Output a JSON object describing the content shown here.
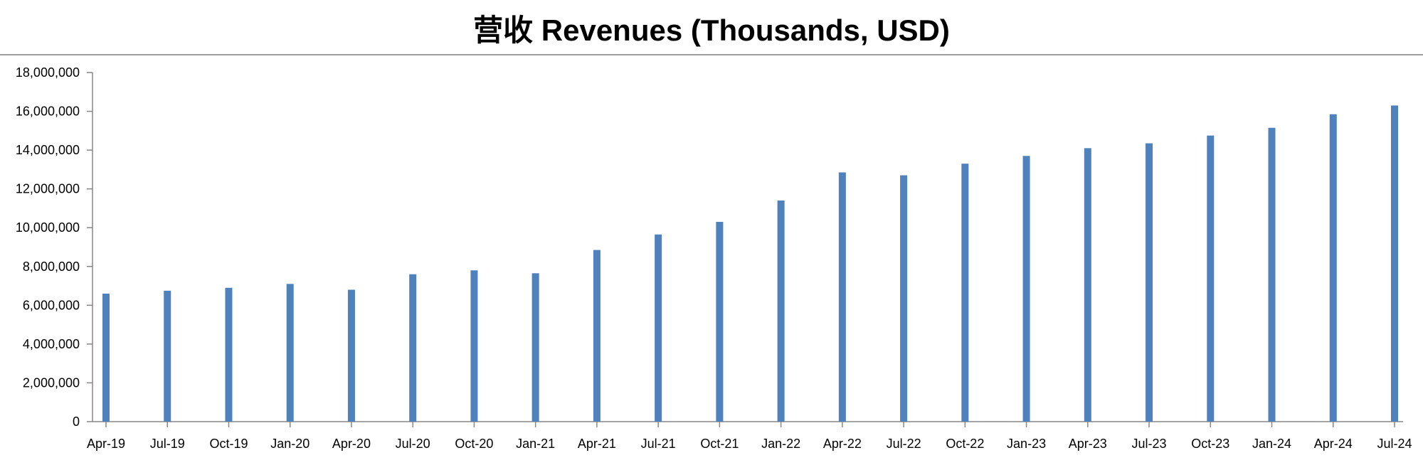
{
  "chart_data": {
    "type": "bar",
    "title": "营收 Revenues (Thousands, USD)",
    "xlabel": "",
    "ylabel": "",
    "categories": [
      "Apr-19",
      "Jul-19",
      "Oct-19",
      "Jan-20",
      "Apr-20",
      "Jul-20",
      "Oct-20",
      "Jan-21",
      "Apr-21",
      "Jul-21",
      "Oct-21",
      "Jan-22",
      "Apr-22",
      "Jul-22",
      "Oct-22",
      "Jan-23",
      "Apr-23",
      "Jul-23",
      "Oct-23",
      "Jan-24",
      "Apr-24",
      "Jul-24"
    ],
    "values": [
      6600000,
      6750000,
      6900000,
      7100000,
      6800000,
      7600000,
      7800000,
      7650000,
      8850000,
      9650000,
      10300000,
      11400000,
      12850000,
      12700000,
      13300000,
      13700000,
      14100000,
      14350000,
      14750000,
      15150000,
      15850000,
      16300000
    ],
    "ylim": [
      0,
      18000000
    ],
    "yticks": [
      0,
      2000000,
      4000000,
      6000000,
      8000000,
      10000000,
      12000000,
      14000000,
      16000000,
      18000000
    ],
    "ytick_labels": [
      "0",
      "2,000,000",
      "4,000,000",
      "6,000,000",
      "8,000,000",
      "10,000,000",
      "12,000,000",
      "14,000,000",
      "16,000,000",
      "18,000,000"
    ],
    "grid": false,
    "legend": "none",
    "bar_color": "#4F81BD"
  }
}
